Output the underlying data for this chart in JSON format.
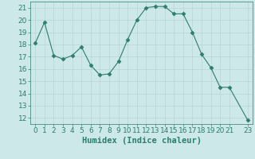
{
  "x": [
    0,
    1,
    2,
    3,
    4,
    5,
    6,
    7,
    8,
    9,
    10,
    11,
    12,
    13,
    14,
    15,
    16,
    17,
    18,
    19,
    20,
    21,
    23
  ],
  "y": [
    18.1,
    19.8,
    17.1,
    16.8,
    17.1,
    17.8,
    16.3,
    15.5,
    15.6,
    16.6,
    18.4,
    20.0,
    21.0,
    21.1,
    21.1,
    20.5,
    20.5,
    19.0,
    17.2,
    16.1,
    14.5,
    14.5,
    11.8
  ],
  "line_color": "#2d7d6e",
  "marker": "D",
  "marker_size": 2.5,
  "bg_color": "#cce8e8",
  "grid_color": "#b8d4d4",
  "xlabel": "Humidex (Indice chaleur)",
  "xlim": [
    -0.5,
    23.5
  ],
  "ylim": [
    11.5,
    21.5
  ],
  "yticks": [
    12,
    13,
    14,
    15,
    16,
    17,
    18,
    19,
    20,
    21
  ],
  "xticks": [
    0,
    1,
    2,
    3,
    4,
    5,
    6,
    7,
    8,
    9,
    10,
    11,
    12,
    13,
    14,
    15,
    16,
    17,
    18,
    19,
    20,
    21,
    23
  ],
  "font_color": "#2d7d6e",
  "xlabel_fontsize": 7.5,
  "tick_fontsize": 6.5
}
